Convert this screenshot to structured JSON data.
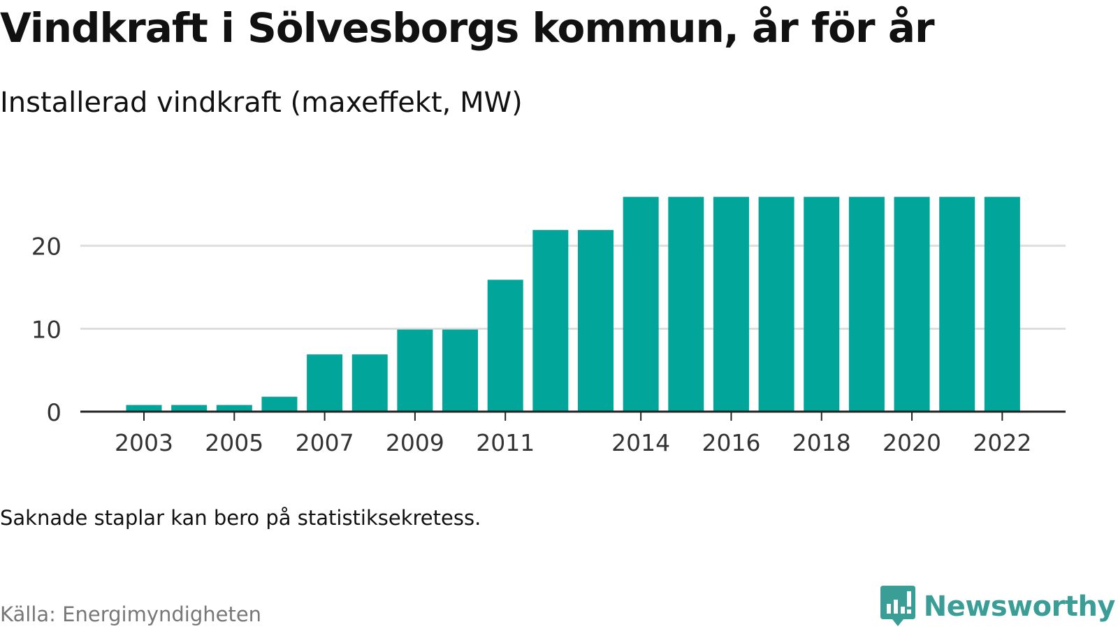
{
  "header": {
    "title": "Vindkraft i Sölvesborgs kommun, år för år",
    "subtitle": "Installerad vindkraft (maxeffekt, MW)"
  },
  "footer": {
    "note": "Saknade staplar kan bero på statistiksekretess.",
    "source": "Källa: Energimyndigheten",
    "brand": "Newsworthy",
    "brand_icon": "newsworthy-bar-chart-logo-icon"
  },
  "colors": {
    "bar": "#02a59a",
    "grid": "#dddddd",
    "axis": "#222222",
    "text": "#111111",
    "muted": "#777777",
    "brand": "#3a9e97"
  },
  "chart_data": {
    "type": "bar",
    "categories": [
      "2003",
      "2004",
      "2005",
      "2006",
      "2007",
      "2008",
      "2009",
      "2010",
      "2011",
      "2012",
      "2013",
      "2014",
      "2015",
      "2016",
      "2017",
      "2018",
      "2019",
      "2020",
      "2021",
      "2022"
    ],
    "x_tick_labels": [
      "2003",
      "2005",
      "2007",
      "2009",
      "2011",
      "2014",
      "2016",
      "2018",
      "2020",
      "2022"
    ],
    "series": [
      {
        "values": [
          0.8,
          0.8,
          0.8,
          1.8,
          6.9,
          6.9,
          9.9,
          9.9,
          15.9,
          21.9,
          21.9,
          25.9,
          25.9,
          25.9,
          25.9,
          25.9,
          25.9,
          25.9,
          25.9,
          25.9
        ]
      }
    ],
    "y_ticks": [
      0,
      10,
      20
    ],
    "ylim": [
      0,
      30
    ],
    "xlabel": "",
    "ylabel": "",
    "grid": true,
    "legend": "none"
  }
}
